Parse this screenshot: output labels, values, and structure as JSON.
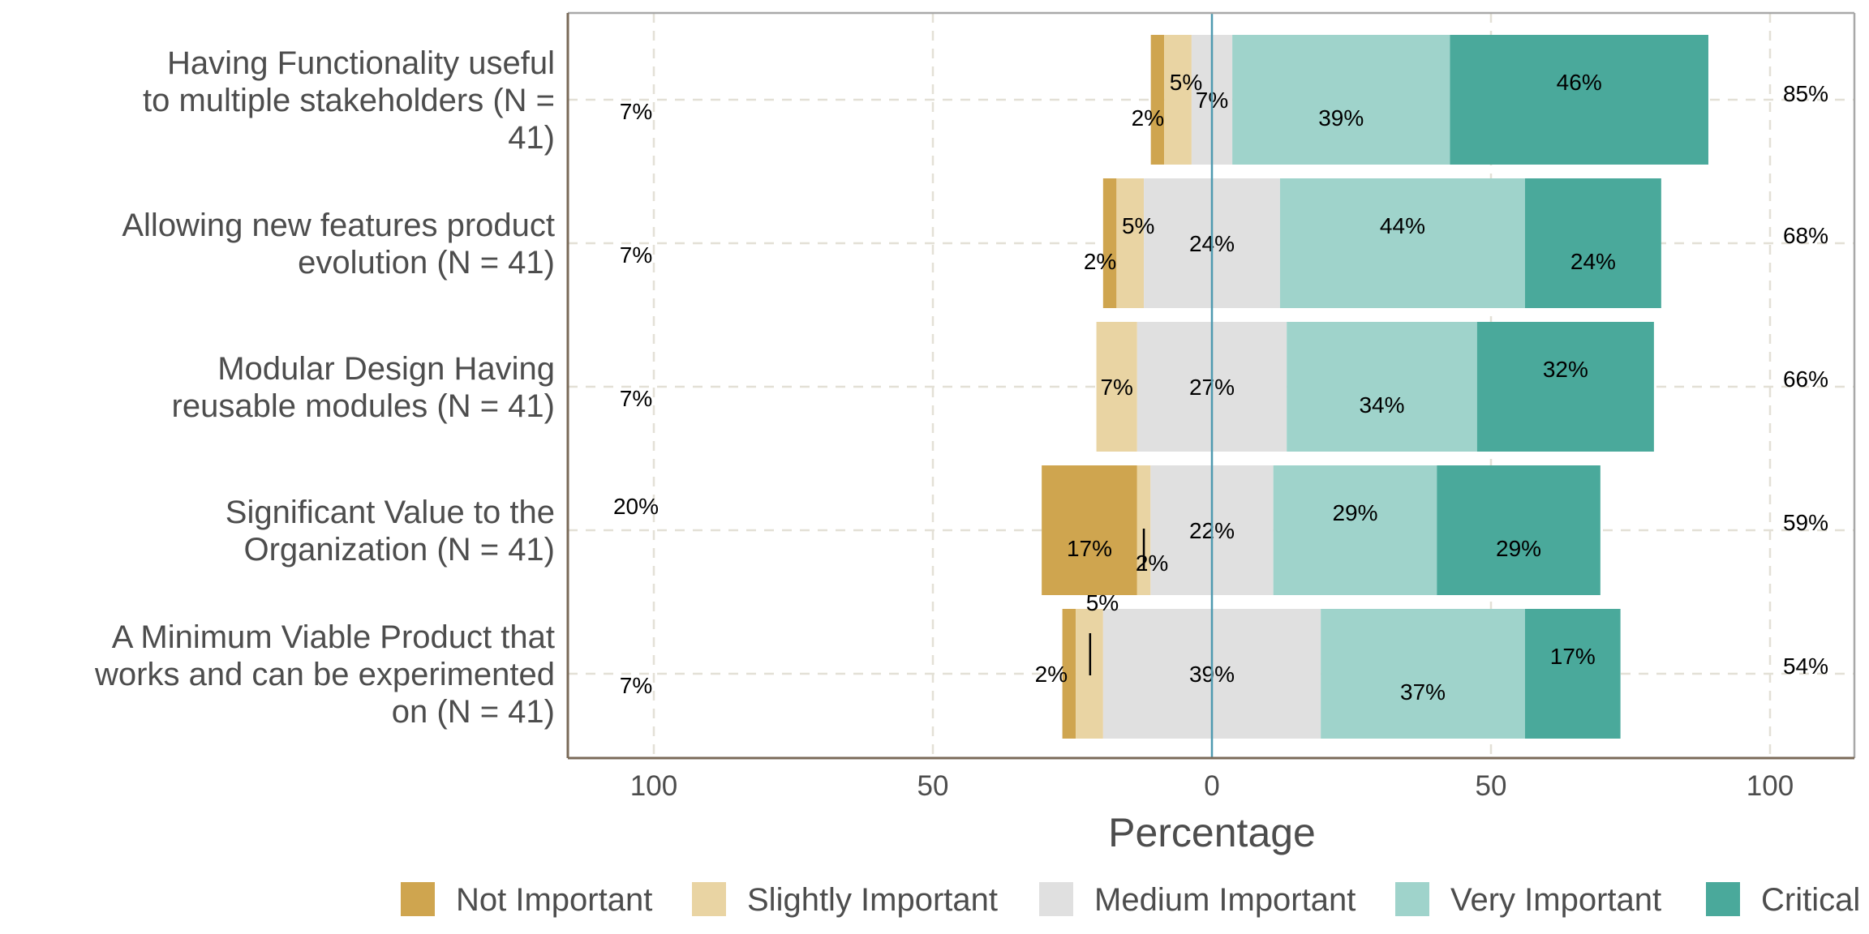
{
  "chart_data": {
    "type": "bar",
    "orientation": "horizontal",
    "stacking": "diverging",
    "title": "",
    "xlabel": "Percentage",
    "ylabel": "",
    "xlim": [
      -100,
      100
    ],
    "x_ticks": [
      -100,
      -50,
      0,
      50,
      100
    ],
    "x_tick_labels": [
      "100",
      "50",
      "0",
      "50",
      "100"
    ],
    "grid": true,
    "legend_position": "bottom",
    "levels": [
      "Not Important",
      "Slightly Important",
      "Medium Important",
      "Very Important",
      "Critical"
    ],
    "colors": [
      "#cfa54f",
      "#e9d4a3",
      "#e0e0e0",
      "#9fd3cb",
      "#4aa99b"
    ],
    "categories": [
      "Having Functionality useful to multiple stakeholders (N = 41)",
      "Allowing new features product evolution (N = 41)",
      "Modular Design Having reusable modules (N = 41)",
      "Significant Value to the Organization (N = 41)",
      "A Minimum Viable Product that works and can be experimented on (N = 41)"
    ],
    "category_lines": [
      [
        "Having Functionality useful",
        "to multiple stakeholders (N =",
        "41)"
      ],
      [
        "Allowing new features product",
        "evolution (N = 41)"
      ],
      [
        "Modular Design Having",
        "reusable modules (N = 41)"
      ],
      [
        "Significant Value to the",
        "Organization (N = 41)"
      ],
      [
        "A Minimum Viable Product that",
        "works and can be experimented",
        "on (N = 41)"
      ]
    ],
    "series": [
      {
        "name": "Not Important",
        "values": [
          2.4,
          2.4,
          0,
          17.1,
          2.4
        ],
        "labels": [
          "2%",
          "2%",
          "",
          "17%",
          "2%"
        ]
      },
      {
        "name": "Slightly Important",
        "values": [
          4.9,
          4.9,
          7.3,
          2.4,
          4.9
        ],
        "labels": [
          "5%",
          "5%",
          "7%",
          "2%",
          "5%"
        ]
      },
      {
        "name": "Medium Important",
        "values": [
          7.3,
          24.4,
          26.8,
          22.0,
          39.0
        ],
        "labels": [
          "7%",
          "24%",
          "27%",
          "22%",
          "39%"
        ]
      },
      {
        "name": "Very Important",
        "values": [
          39.0,
          43.9,
          34.1,
          29.3,
          36.6
        ],
        "labels": [
          "39%",
          "44%",
          "34%",
          "29%",
          "37%"
        ]
      },
      {
        "name": "Critical",
        "values": [
          46.3,
          24.4,
          31.7,
          29.3,
          17.1
        ],
        "labels": [
          "46%",
          "24%",
          "32%",
          "29%",
          "17%"
        ]
      }
    ],
    "low_totals": [
      "7%",
      "7%",
      "7%",
      "20%",
      "7%"
    ],
    "high_totals": [
      "85%",
      "68%",
      "66%",
      "59%",
      "54%"
    ]
  }
}
